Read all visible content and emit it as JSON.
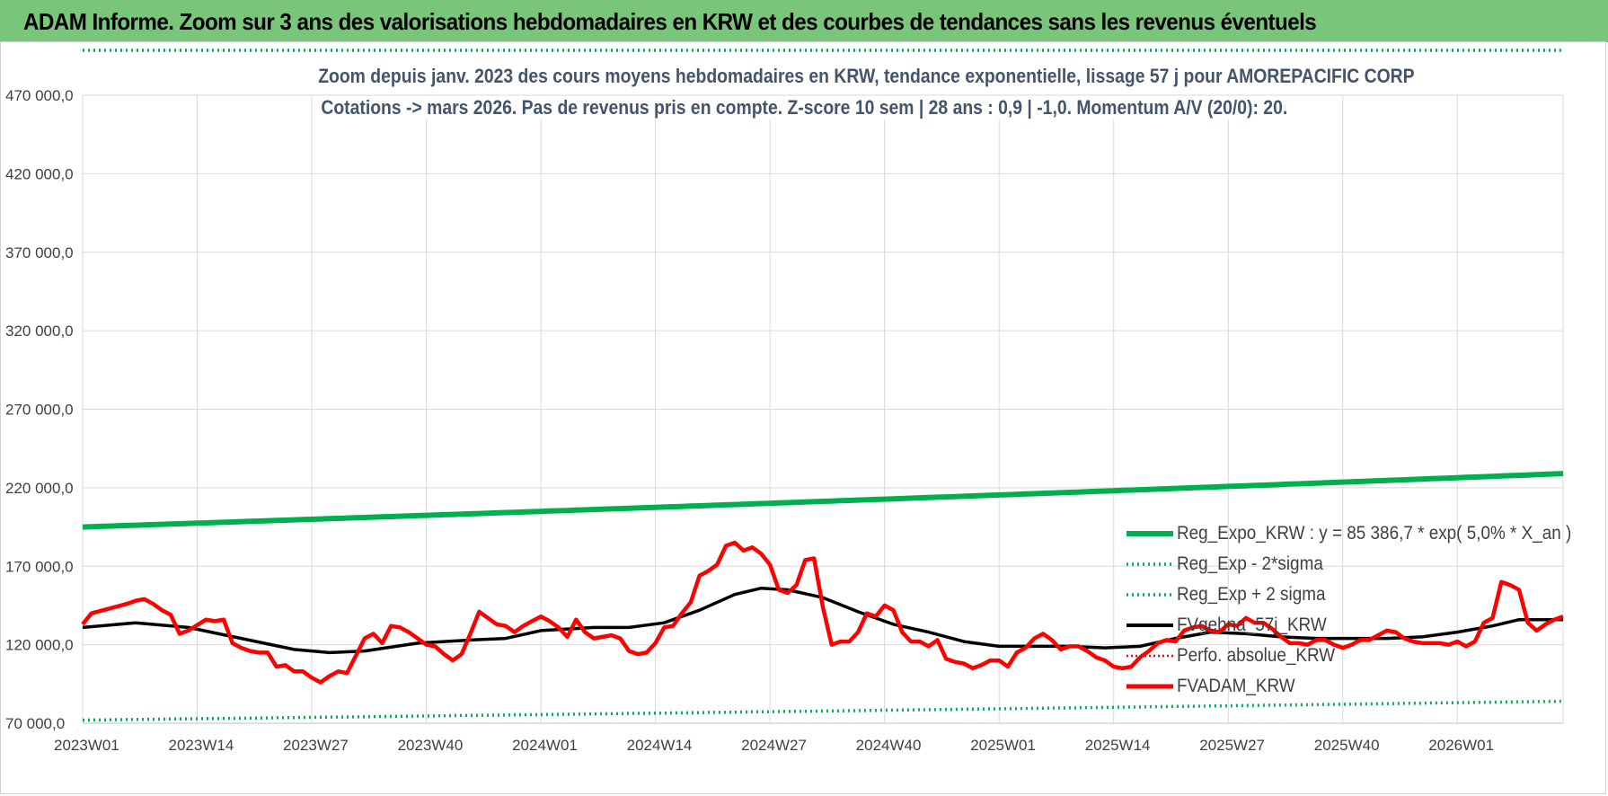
{
  "banner": {
    "title": "ADAM Informe. Zoom sur 3 ans des valorisations hebdomadaires en KRW et des courbes de tendances sans les revenus éventuels"
  },
  "chart_data": {
    "type": "line",
    "title_line1": "Zoom depuis janv. 2023 des cours moyens hebdomadaires en KRW, tendance exponentielle, lissage 57 j pour AMOREPACIFIC CORP",
    "title_line2": "Cotations -> mars 2026. Pas de revenus pris en compte. Z-score 10 sem | 28 ans : 0,9 | -1,0. Momentum A/V (20/0): 20.",
    "ylim": [
      70000,
      470000
    ],
    "y_ticks": [
      70000,
      120000,
      170000,
      220000,
      270000,
      320000,
      370000,
      420000,
      470000
    ],
    "y_tick_labels": [
      "70 000,0",
      "120 000,0",
      "170 000,0",
      "220 000,0",
      "270 000,0",
      "320 000,0",
      "370 000,0",
      "420 000,0",
      "470 000,0"
    ],
    "x_tick_labels": [
      "2023W01",
      "2023W14",
      "2023W27",
      "2023W40",
      "2024W01",
      "2024W14",
      "2024W27",
      "2024W40",
      "2025W01",
      "2025W14",
      "2025W27",
      "2025W40",
      "2026W01"
    ],
    "x_tick_week_index": [
      0,
      13,
      26,
      39,
      52,
      65,
      78,
      91,
      104,
      117,
      130,
      143,
      156
    ],
    "week_count": 169,
    "grid": true,
    "legend_position": "right",
    "series": [
      {
        "name": "Reg_Expo_KRW : y = 85 386,7 * exp( 5,0% *  X_an )",
        "style": "solid-thick",
        "color": "#00b050",
        "start_value": 195000,
        "end_value": 229000,
        "growth_rate": 0.05
      },
      {
        "name": "Reg_Exp - 2*sigma",
        "style": "dotted",
        "color": "#00b050",
        "start_value": 72000,
        "end_value": 84000,
        "growth_rate": 0.05
      },
      {
        "name": "Reg_Exp + 2 sigma",
        "style": "dotted",
        "color": "#00b050",
        "start_value": 500000,
        "end_value": 500000,
        "note": "clipped at top of plot area"
      },
      {
        "name": "FVgehna_57j_KRW",
        "style": "solid",
        "color": "#000000",
        "points": [
          [
            0,
            131000
          ],
          [
            6,
            134000
          ],
          [
            12,
            131000
          ],
          [
            18,
            124000
          ],
          [
            24,
            117000
          ],
          [
            28,
            115000
          ],
          [
            32,
            116000
          ],
          [
            38,
            121000
          ],
          [
            44,
            123000
          ],
          [
            48,
            124000
          ],
          [
            52,
            129000
          ],
          [
            58,
            131000
          ],
          [
            62,
            131000
          ],
          [
            66,
            134000
          ],
          [
            70,
            142000
          ],
          [
            74,
            152000
          ],
          [
            77,
            156000
          ],
          [
            80,
            155000
          ],
          [
            84,
            150000
          ],
          [
            88,
            141000
          ],
          [
            92,
            133000
          ],
          [
            96,
            128000
          ],
          [
            100,
            122000
          ],
          [
            104,
            119000
          ],
          [
            108,
            119000
          ],
          [
            112,
            119000
          ],
          [
            116,
            118000
          ],
          [
            120,
            119000
          ],
          [
            124,
            124000
          ],
          [
            128,
            128000
          ],
          [
            132,
            127000
          ],
          [
            136,
            125000
          ],
          [
            140,
            124000
          ],
          [
            144,
            124000
          ],
          [
            148,
            124000
          ],
          [
            152,
            125000
          ],
          [
            156,
            128000
          ],
          [
            160,
            132000
          ],
          [
            163,
            136000
          ],
          [
            166,
            136000
          ],
          [
            168,
            136000
          ]
        ]
      },
      {
        "name": "Perfo. absolue_KRW",
        "style": "dotted-thin",
        "color": "#ff0000",
        "points": []
      },
      {
        "name": "FVADAM_KRW",
        "style": "solid-thick",
        "color": "#ff0000",
        "points": [
          [
            0,
            133000
          ],
          [
            1,
            140000
          ],
          [
            3,
            143000
          ],
          [
            5,
            146000
          ],
          [
            6,
            148000
          ],
          [
            7,
            149000
          ],
          [
            8,
            146000
          ],
          [
            9,
            142000
          ],
          [
            10,
            139000
          ],
          [
            11,
            127000
          ],
          [
            12,
            129000
          ],
          [
            14,
            136000
          ],
          [
            15,
            135000
          ],
          [
            16,
            136000
          ],
          [
            17,
            121000
          ],
          [
            18,
            118000
          ],
          [
            19,
            116000
          ],
          [
            20,
            115000
          ],
          [
            21,
            115000
          ],
          [
            22,
            106000
          ],
          [
            23,
            107000
          ],
          [
            24,
            103000
          ],
          [
            25,
            103000
          ],
          [
            26,
            99000
          ],
          [
            27,
            96000
          ],
          [
            28,
            100000
          ],
          [
            29,
            103000
          ],
          [
            30,
            102000
          ],
          [
            31,
            113000
          ],
          [
            32,
            124000
          ],
          [
            33,
            127000
          ],
          [
            34,
            121000
          ],
          [
            35,
            132000
          ],
          [
            36,
            131000
          ],
          [
            37,
            128000
          ],
          [
            38,
            124000
          ],
          [
            39,
            120000
          ],
          [
            40,
            119000
          ],
          [
            41,
            114000
          ],
          [
            42,
            110000
          ],
          [
            43,
            114000
          ],
          [
            44,
            127000
          ],
          [
            45,
            141000
          ],
          [
            46,
            137000
          ],
          [
            47,
            133000
          ],
          [
            48,
            132000
          ],
          [
            49,
            128000
          ],
          [
            50,
            132000
          ],
          [
            51,
            135000
          ],
          [
            52,
            138000
          ],
          [
            53,
            135000
          ],
          [
            54,
            131000
          ],
          [
            55,
            125000
          ],
          [
            56,
            136000
          ],
          [
            57,
            128000
          ],
          [
            58,
            124000
          ],
          [
            59,
            125000
          ],
          [
            60,
            126000
          ],
          [
            61,
            124000
          ],
          [
            62,
            116000
          ],
          [
            63,
            114000
          ],
          [
            64,
            115000
          ],
          [
            65,
            121000
          ],
          [
            66,
            131000
          ],
          [
            67,
            132000
          ],
          [
            68,
            140000
          ],
          [
            69,
            147000
          ],
          [
            70,
            164000
          ],
          [
            71,
            167000
          ],
          [
            72,
            171000
          ],
          [
            73,
            183000
          ],
          [
            74,
            185000
          ],
          [
            75,
            180000
          ],
          [
            76,
            182000
          ],
          [
            77,
            178000
          ],
          [
            78,
            171000
          ],
          [
            79,
            155000
          ],
          [
            80,
            153000
          ],
          [
            81,
            158000
          ],
          [
            82,
            174000
          ],
          [
            83,
            175000
          ],
          [
            84,
            144000
          ],
          [
            85,
            120000
          ],
          [
            86,
            122000
          ],
          [
            87,
            122000
          ],
          [
            88,
            128000
          ],
          [
            89,
            140000
          ],
          [
            90,
            138000
          ],
          [
            91,
            145000
          ],
          [
            92,
            142000
          ],
          [
            93,
            128000
          ],
          [
            94,
            122000
          ],
          [
            95,
            122000
          ],
          [
            96,
            119000
          ],
          [
            97,
            123000
          ],
          [
            98,
            111000
          ],
          [
            99,
            109000
          ],
          [
            100,
            108000
          ],
          [
            101,
            105000
          ],
          [
            102,
            107000
          ],
          [
            103,
            110000
          ],
          [
            104,
            110000
          ],
          [
            105,
            106000
          ],
          [
            106,
            115000
          ],
          [
            107,
            118000
          ],
          [
            108,
            124000
          ],
          [
            109,
            127000
          ],
          [
            110,
            123000
          ],
          [
            111,
            117000
          ],
          [
            112,
            119000
          ],
          [
            113,
            119000
          ],
          [
            114,
            116000
          ],
          [
            115,
            112000
          ],
          [
            116,
            110000
          ],
          [
            117,
            106000
          ],
          [
            118,
            105000
          ],
          [
            119,
            106000
          ],
          [
            120,
            112000
          ],
          [
            121,
            116000
          ],
          [
            122,
            121000
          ],
          [
            123,
            123000
          ],
          [
            124,
            122000
          ],
          [
            125,
            129000
          ],
          [
            126,
            131000
          ],
          [
            127,
            132000
          ],
          [
            128,
            129000
          ],
          [
            129,
            128000
          ],
          [
            130,
            133000
          ],
          [
            131,
            132000
          ],
          [
            132,
            137000
          ],
          [
            133,
            134000
          ],
          [
            134,
            134000
          ],
          [
            135,
            130000
          ],
          [
            136,
            125000
          ],
          [
            137,
            121000
          ],
          [
            138,
            121000
          ],
          [
            139,
            120000
          ],
          [
            140,
            123000
          ],
          [
            141,
            123000
          ],
          [
            142,
            120000
          ],
          [
            143,
            118000
          ],
          [
            144,
            120000
          ],
          [
            145,
            123000
          ],
          [
            146,
            123000
          ],
          [
            147,
            126000
          ],
          [
            148,
            129000
          ],
          [
            149,
            128000
          ],
          [
            150,
            124000
          ],
          [
            151,
            122000
          ],
          [
            152,
            121000
          ],
          [
            153,
            121000
          ],
          [
            154,
            121000
          ],
          [
            155,
            120000
          ],
          [
            156,
            122000
          ],
          [
            157,
            119000
          ],
          [
            158,
            122000
          ],
          [
            159,
            134000
          ],
          [
            160,
            137000
          ],
          [
            161,
            160000
          ],
          [
            162,
            158000
          ],
          [
            163,
            155000
          ],
          [
            164,
            134000
          ],
          [
            165,
            129000
          ],
          [
            166,
            133000
          ],
          [
            167,
            136000
          ],
          [
            168,
            138000
          ]
        ]
      }
    ]
  }
}
